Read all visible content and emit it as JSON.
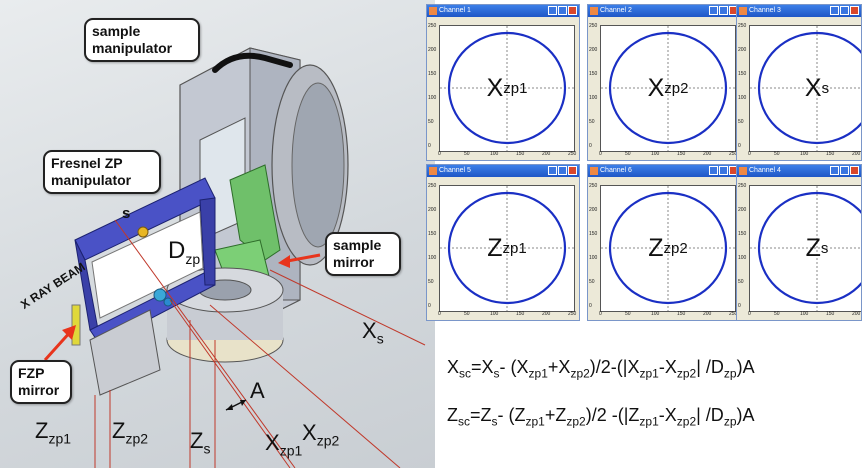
{
  "diagram": {
    "callouts": {
      "sample_manipulator": "sample\nmanipulator",
      "fresnel_manipulator": "Fresnel ZP\nmanipulator",
      "sample_mirror": "sample\nmirror",
      "fzp_mirror": "FZP\nmirror"
    },
    "beam_label": "X RAY BEAM",
    "s_label": "s",
    "d_label": {
      "main": "D",
      "sub": "zp"
    },
    "a_label": "A",
    "xs_label": {
      "main": "X",
      "sub": "s"
    },
    "bottom_labels": [
      {
        "main": "Z",
        "sub": "zp1"
      },
      {
        "main": "Z",
        "sub": "zp2"
      },
      {
        "main": "Z",
        "sub": "s"
      },
      {
        "main": "X",
        "sub": "zp1"
      },
      {
        "main": "X",
        "sub": "zp2"
      }
    ]
  },
  "channels": [
    {
      "title": "Channel 1",
      "label_main": "X",
      "label_sub": "zp1"
    },
    {
      "title": "Channel 2",
      "label_main": "X",
      "label_sub": "zp2"
    },
    {
      "title": "Channel 3",
      "label_main": "X",
      "label_sub": "s"
    },
    {
      "title": "Channel 5",
      "label_main": "Z",
      "label_sub": "zp1"
    },
    {
      "title": "Channel 6",
      "label_main": "Z",
      "label_sub": "zp2"
    },
    {
      "title": "Channel 4",
      "label_main": "Z",
      "label_sub": "s"
    }
  ],
  "axis_ticks": {
    "y": [
      "250",
      "200",
      "150",
      "100",
      "50",
      "0"
    ],
    "x": [
      "0",
      "50",
      "100",
      "150",
      "200",
      "250"
    ]
  },
  "colors": {
    "circle": "#1a2fc4",
    "window_title": "#2a66d9",
    "arrow": "#e8341c"
  },
  "equations": {
    "x": [
      {
        "t": "X"
      },
      {
        "s": "sc"
      },
      {
        "t": "=X"
      },
      {
        "s": "s"
      },
      {
        "t": "- (X"
      },
      {
        "s": "zp1"
      },
      {
        "t": "+X"
      },
      {
        "s": "zp2"
      },
      {
        "t": ")/2-(|X"
      },
      {
        "s": "zp1"
      },
      {
        "t": "-X"
      },
      {
        "s": "zp2"
      },
      {
        "t": "| /D"
      },
      {
        "s": "zp"
      },
      {
        "t": ")A"
      }
    ],
    "z": [
      {
        "t": "Z"
      },
      {
        "s": "sc"
      },
      {
        "t": "=Z"
      },
      {
        "s": "s"
      },
      {
        "t": "- (Z"
      },
      {
        "s": "zp1"
      },
      {
        "t": "+Z"
      },
      {
        "s": "zp2"
      },
      {
        "t": ")/2 -(|Z"
      },
      {
        "s": "zp1"
      },
      {
        "t": "-X"
      },
      {
        "s": "zp2"
      },
      {
        "t": "| /D"
      },
      {
        "s": "zp"
      },
      {
        "t": ")A"
      }
    ]
  }
}
